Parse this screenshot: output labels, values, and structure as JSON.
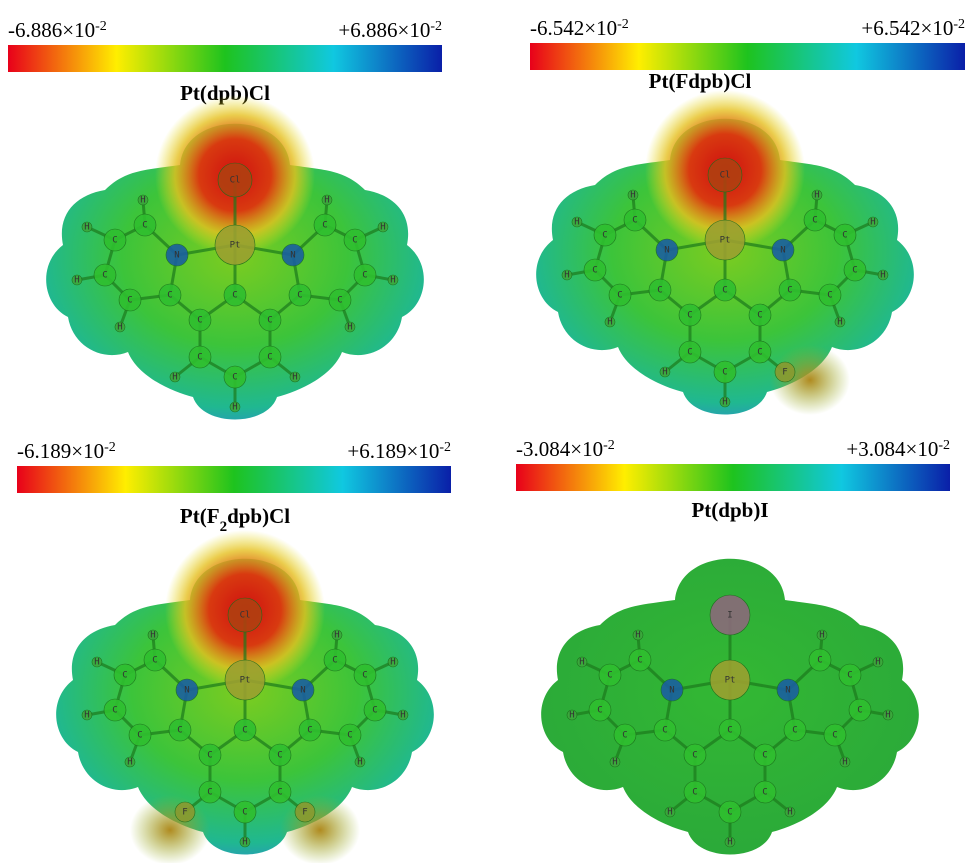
{
  "panels": [
    {
      "min": {
        "base": "-6.886×10",
        "exponent": "-2"
      },
      "max": {
        "base": "+6.886×10",
        "exponent": "-2"
      },
      "title": "Pt(dpb)Cl",
      "atoms": [
        "Cl",
        "Pt",
        "N",
        "N",
        "C",
        "C",
        "C",
        "C",
        "C",
        "C",
        "C",
        "C",
        "C",
        "C",
        "C",
        "C",
        "C",
        "C",
        "C",
        "C",
        "H",
        "H",
        "H",
        "H",
        "H",
        "H",
        "H",
        "H",
        "H",
        "H",
        "H"
      ]
    },
    {
      "min": {
        "base": "-6.542×10",
        "exponent": "-2"
      },
      "max": {
        "base": "+6.542×10",
        "exponent": "-2"
      },
      "title": "Pt(Fdpb)Cl",
      "atoms": [
        "Cl",
        "Pt",
        "N",
        "N",
        "C",
        "C",
        "C",
        "C",
        "C",
        "C",
        "C",
        "C",
        "C",
        "C",
        "C",
        "C",
        "C",
        "C",
        "C",
        "C",
        "H",
        "H",
        "H",
        "H",
        "H",
        "H",
        "H",
        "H",
        "H",
        "F",
        "H"
      ]
    },
    {
      "min": {
        "base": "-6.189×10",
        "exponent": "-2"
      },
      "max": {
        "base": "+6.189×10",
        "exponent": "-2"
      },
      "title": {
        "before": "Pt(F",
        "sub": "2",
        "after": "dpb)Cl"
      },
      "atoms": [
        "Cl",
        "Pt",
        "N",
        "N",
        "C",
        "C",
        "C",
        "C",
        "C",
        "C",
        "C",
        "C",
        "C",
        "C",
        "C",
        "C",
        "C",
        "C",
        "C",
        "C",
        "H",
        "H",
        "H",
        "H",
        "H",
        "H",
        "H",
        "H",
        "F",
        "F",
        "H"
      ]
    },
    {
      "min": {
        "base": "-3.084×10",
        "exponent": "-2"
      },
      "max": {
        "base": "+3.084×10",
        "exponent": "-2"
      },
      "title": "Pt(dpb)I",
      "atoms": [
        "I",
        "Pt",
        "N",
        "N",
        "C",
        "C",
        "C",
        "C",
        "C",
        "C",
        "C",
        "C",
        "C",
        "C",
        "C",
        "C",
        "C",
        "C",
        "C",
        "C",
        "H",
        "H",
        "H",
        "H",
        "H",
        "H",
        "H",
        "H",
        "H",
        "H",
        "H"
      ]
    }
  ]
}
